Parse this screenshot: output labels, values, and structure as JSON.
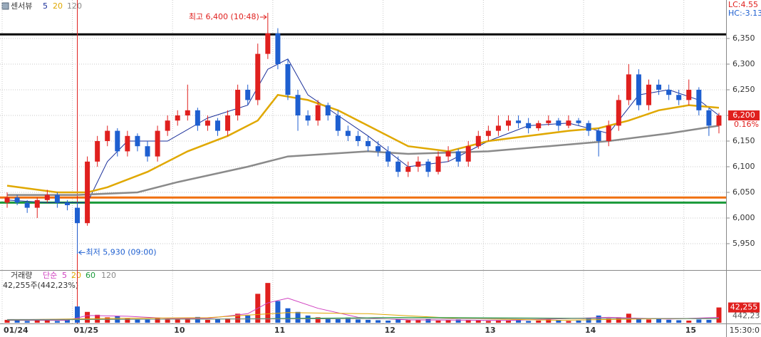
{
  "chart_data": [
    {
      "type": "candlestick",
      "title": "센서뷰",
      "lc_label": "LC:4.55",
      "hc_label": "HC:-3.13",
      "categories": [
        "01/24",
        null,
        null,
        null,
        null,
        null,
        null,
        "01/25",
        null,
        null,
        null,
        null,
        null,
        null,
        null,
        null,
        null,
        "10",
        null,
        null,
        null,
        null,
        null,
        null,
        null,
        null,
        null,
        "11",
        null,
        null,
        null,
        null,
        null,
        null,
        null,
        null,
        null,
        null,
        "12",
        null,
        null,
        null,
        null,
        null,
        null,
        null,
        null,
        null,
        "13",
        null,
        null,
        null,
        null,
        null,
        null,
        null,
        null,
        null,
        "14",
        null,
        null,
        null,
        null,
        null,
        null,
        null,
        null,
        null,
        "15",
        null,
        null,
        null
      ],
      "open": [
        6030,
        6040,
        6030,
        6020,
        6035,
        6045,
        6030,
        6020,
        5990,
        6110,
        6150,
        6170,
        6130,
        6160,
        6140,
        6120,
        6170,
        6190,
        6200,
        6210,
        6180,
        6190,
        6170,
        6200,
        6250,
        6230,
        6320,
        6360,
        6300,
        6240,
        6200,
        6190,
        6220,
        6200,
        6170,
        6160,
        6150,
        6140,
        6130,
        6110,
        6090,
        6100,
        6110,
        6090,
        6120,
        6130,
        6110,
        6140,
        6160,
        6170,
        6180,
        6190,
        6185,
        6175,
        6185,
        6190,
        6180,
        6190,
        6185,
        6170,
        6150,
        6180,
        6230,
        6280,
        6220,
        6260,
        6250,
        6240,
        6230,
        6250,
        6210,
        6180
      ],
      "high": [
        6050,
        6045,
        6035,
        6040,
        6055,
        6050,
        6035,
        6030,
        6120,
        6160,
        6180,
        6175,
        6170,
        6165,
        6150,
        6180,
        6200,
        6210,
        6260,
        6215,
        6200,
        6195,
        6210,
        6260,
        6260,
        6340,
        6400,
        6370,
        6310,
        6250,
        6210,
        6230,
        6225,
        6210,
        6180,
        6170,
        6160,
        6150,
        6140,
        6120,
        6110,
        6120,
        6115,
        6130,
        6140,
        6135,
        6150,
        6170,
        6180,
        6200,
        6200,
        6200,
        6195,
        6190,
        6200,
        6195,
        6200,
        6195,
        6190,
        6175,
        6190,
        6240,
        6300,
        6290,
        6270,
        6270,
        6260,
        6250,
        6270,
        6255,
        6215,
        6205
      ],
      "low": [
        6020,
        6025,
        6010,
        6000,
        6030,
        6020,
        6015,
        5930,
        5985,
        6100,
        6140,
        6120,
        6120,
        6130,
        6110,
        6110,
        6160,
        6180,
        6190,
        6170,
        6170,
        6160,
        6160,
        6190,
        6220,
        6220,
        6310,
        6290,
        6230,
        6170,
        6180,
        6180,
        6190,
        6160,
        6150,
        6140,
        6130,
        6120,
        6100,
        6080,
        6080,
        6090,
        6080,
        6085,
        6110,
        6100,
        6100,
        6135,
        6150,
        6160,
        6170,
        6175,
        6165,
        6170,
        6180,
        6170,
        6175,
        6180,
        6160,
        6120,
        6140,
        6170,
        6220,
        6210,
        6210,
        6240,
        6230,
        6220,
        6220,
        6200,
        6160,
        6165
      ],
      "close": [
        6040,
        6030,
        6020,
        6035,
        6045,
        6030,
        6025,
        5990,
        6110,
        6150,
        6170,
        6130,
        6160,
        6140,
        6120,
        6170,
        6190,
        6200,
        6210,
        6180,
        6190,
        6170,
        6200,
        6250,
        6230,
        6320,
        6360,
        6300,
        6240,
        6200,
        6190,
        6220,
        6200,
        6170,
        6160,
        6150,
        6140,
        6130,
        6110,
        6090,
        6100,
        6110,
        6090,
        6120,
        6130,
        6110,
        6140,
        6160,
        6170,
        6180,
        6190,
        6185,
        6175,
        6185,
        6190,
        6180,
        6190,
        6185,
        6170,
        6150,
        6180,
        6230,
        6280,
        6220,
        6260,
        6250,
        6240,
        6230,
        6250,
        6210,
        6180,
        6200
      ],
      "up_color": "#e0201e",
      "down_color": "#1e5fd0",
      "series": [
        {
          "name": "5",
          "color": "#1a2f9a",
          "x": [
            0,
            4,
            8,
            10,
            12,
            16,
            20,
            24,
            26,
            28,
            30,
            33,
            36,
            40,
            44,
            48,
            52,
            56,
            60,
            63,
            66,
            69,
            71
          ],
          "values": [
            6035,
            6030,
            6030,
            6110,
            6150,
            6150,
            6195,
            6220,
            6290,
            6310,
            6240,
            6200,
            6160,
            6100,
            6110,
            6150,
            6180,
            6185,
            6165,
            6240,
            6250,
            6230,
            6200
          ]
        },
        {
          "name": "20",
          "color": "#e0a800",
          "x": [
            0,
            5,
            8,
            10,
            14,
            18,
            22,
            25,
            27,
            30,
            33,
            36,
            40,
            44,
            48,
            52,
            56,
            59,
            62,
            65,
            68,
            71
          ],
          "values": [
            6063,
            6050,
            6050,
            6060,
            6090,
            6130,
            6160,
            6190,
            6240,
            6230,
            6210,
            6180,
            6140,
            6130,
            6150,
            6160,
            6170,
            6175,
            6190,
            6210,
            6220,
            6215
          ]
        },
        {
          "name": "120",
          "color": "#8a8a8a",
          "x": [
            0,
            7,
            13,
            17,
            24,
            28,
            36,
            40,
            48,
            54,
            60,
            66,
            71
          ],
          "values": [
            6045,
            6045,
            6050,
            6070,
            6100,
            6120,
            6130,
            6125,
            6130,
            6140,
            6150,
            6165,
            6180
          ]
        }
      ],
      "hlines": [
        {
          "value": 6358,
          "color": "#000000"
        },
        {
          "value": 6040,
          "color": "#f07010"
        },
        {
          "value": 6030,
          "color": "#1a9a3a"
        }
      ],
      "annotations": [
        {
          "text": "최고 6,400 (10:48)",
          "index": 26,
          "value": 6400
        },
        {
          "text": "최저 5,930 (09:00)",
          "index": 7,
          "value": 5930
        }
      ],
      "current_marker": {
        "value": 6200,
        "label": "6,200"
      },
      "change_label": "0.16%",
      "ylim": [
        5900,
        6425
      ],
      "yticks": [
        {
          "value": 5950,
          "label": "5,950"
        },
        {
          "value": 6000,
          "label": "6,000"
        },
        {
          "value": 6050,
          "label": "6,050"
        },
        {
          "value": 6100,
          "label": "6,100"
        },
        {
          "value": 6150,
          "label": "6,150"
        },
        {
          "value": 6200,
          "label": "6,200"
        },
        {
          "value": 6250,
          "label": "6,250"
        },
        {
          "value": 6300,
          "label": "6,300"
        },
        {
          "value": 6350,
          "label": "6,350"
        }
      ],
      "grid": true,
      "time_label": "15:30:0"
    },
    {
      "type": "bar",
      "title": "거래량",
      "ma_type": "단순",
      "subtitle": "42,255주(442,23%)",
      "values": [
        8000,
        6000,
        5000,
        7000,
        6000,
        5000,
        9000,
        45000,
        30000,
        22000,
        15000,
        18000,
        12000,
        10000,
        9000,
        14000,
        11000,
        9000,
        12000,
        16000,
        8000,
        10000,
        12000,
        25000,
        20000,
        80000,
        110000,
        60000,
        40000,
        30000,
        20000,
        15000,
        12000,
        10000,
        14000,
        9000,
        8000,
        7000,
        6000,
        9000,
        7000,
        8000,
        10000,
        6000,
        7000,
        9000,
        8000,
        6000,
        5000,
        7000,
        6000,
        8000,
        5000,
        6000,
        9000,
        7000,
        5000,
        6000,
        14000,
        20000,
        12000,
        15000,
        25000,
        10000,
        9000,
        12000,
        8000,
        7000,
        6000,
        9000,
        8000,
        42255
      ],
      "series": [
        {
          "name": "5",
          "color": "#d040c0",
          "x": [
            0,
            6,
            8,
            12,
            16,
            20,
            24,
            26,
            28,
            31,
            35,
            40,
            50,
            60,
            66,
            71
          ],
          "values": [
            7000,
            7000,
            20000,
            18000,
            12000,
            12000,
            25000,
            55000,
            68000,
            40000,
            15000,
            8000,
            6500,
            15000,
            10000,
            15000
          ]
        },
        {
          "name": "20",
          "color": "#e0a800",
          "x": [
            0,
            10,
            20,
            28,
            36,
            45,
            55,
            65,
            71
          ],
          "values": [
            8000,
            12000,
            14000,
            28000,
            25000,
            12000,
            7000,
            11000,
            12000
          ]
        },
        {
          "name": "60",
          "color": "#1a9a3a",
          "x": [
            0,
            20,
            40,
            60,
            71
          ],
          "values": [
            8000,
            10000,
            15000,
            12000,
            11000
          ]
        },
        {
          "name": "120",
          "color": "#8a8a8a",
          "x": [
            0,
            35,
            71
          ],
          "values": [
            9000,
            11000,
            12000
          ]
        }
      ],
      "current_marker": {
        "value": 42255,
        "label": "42,255"
      },
      "ratio_label": "442,23",
      "ylim": [
        0,
        130000
      ]
    }
  ]
}
